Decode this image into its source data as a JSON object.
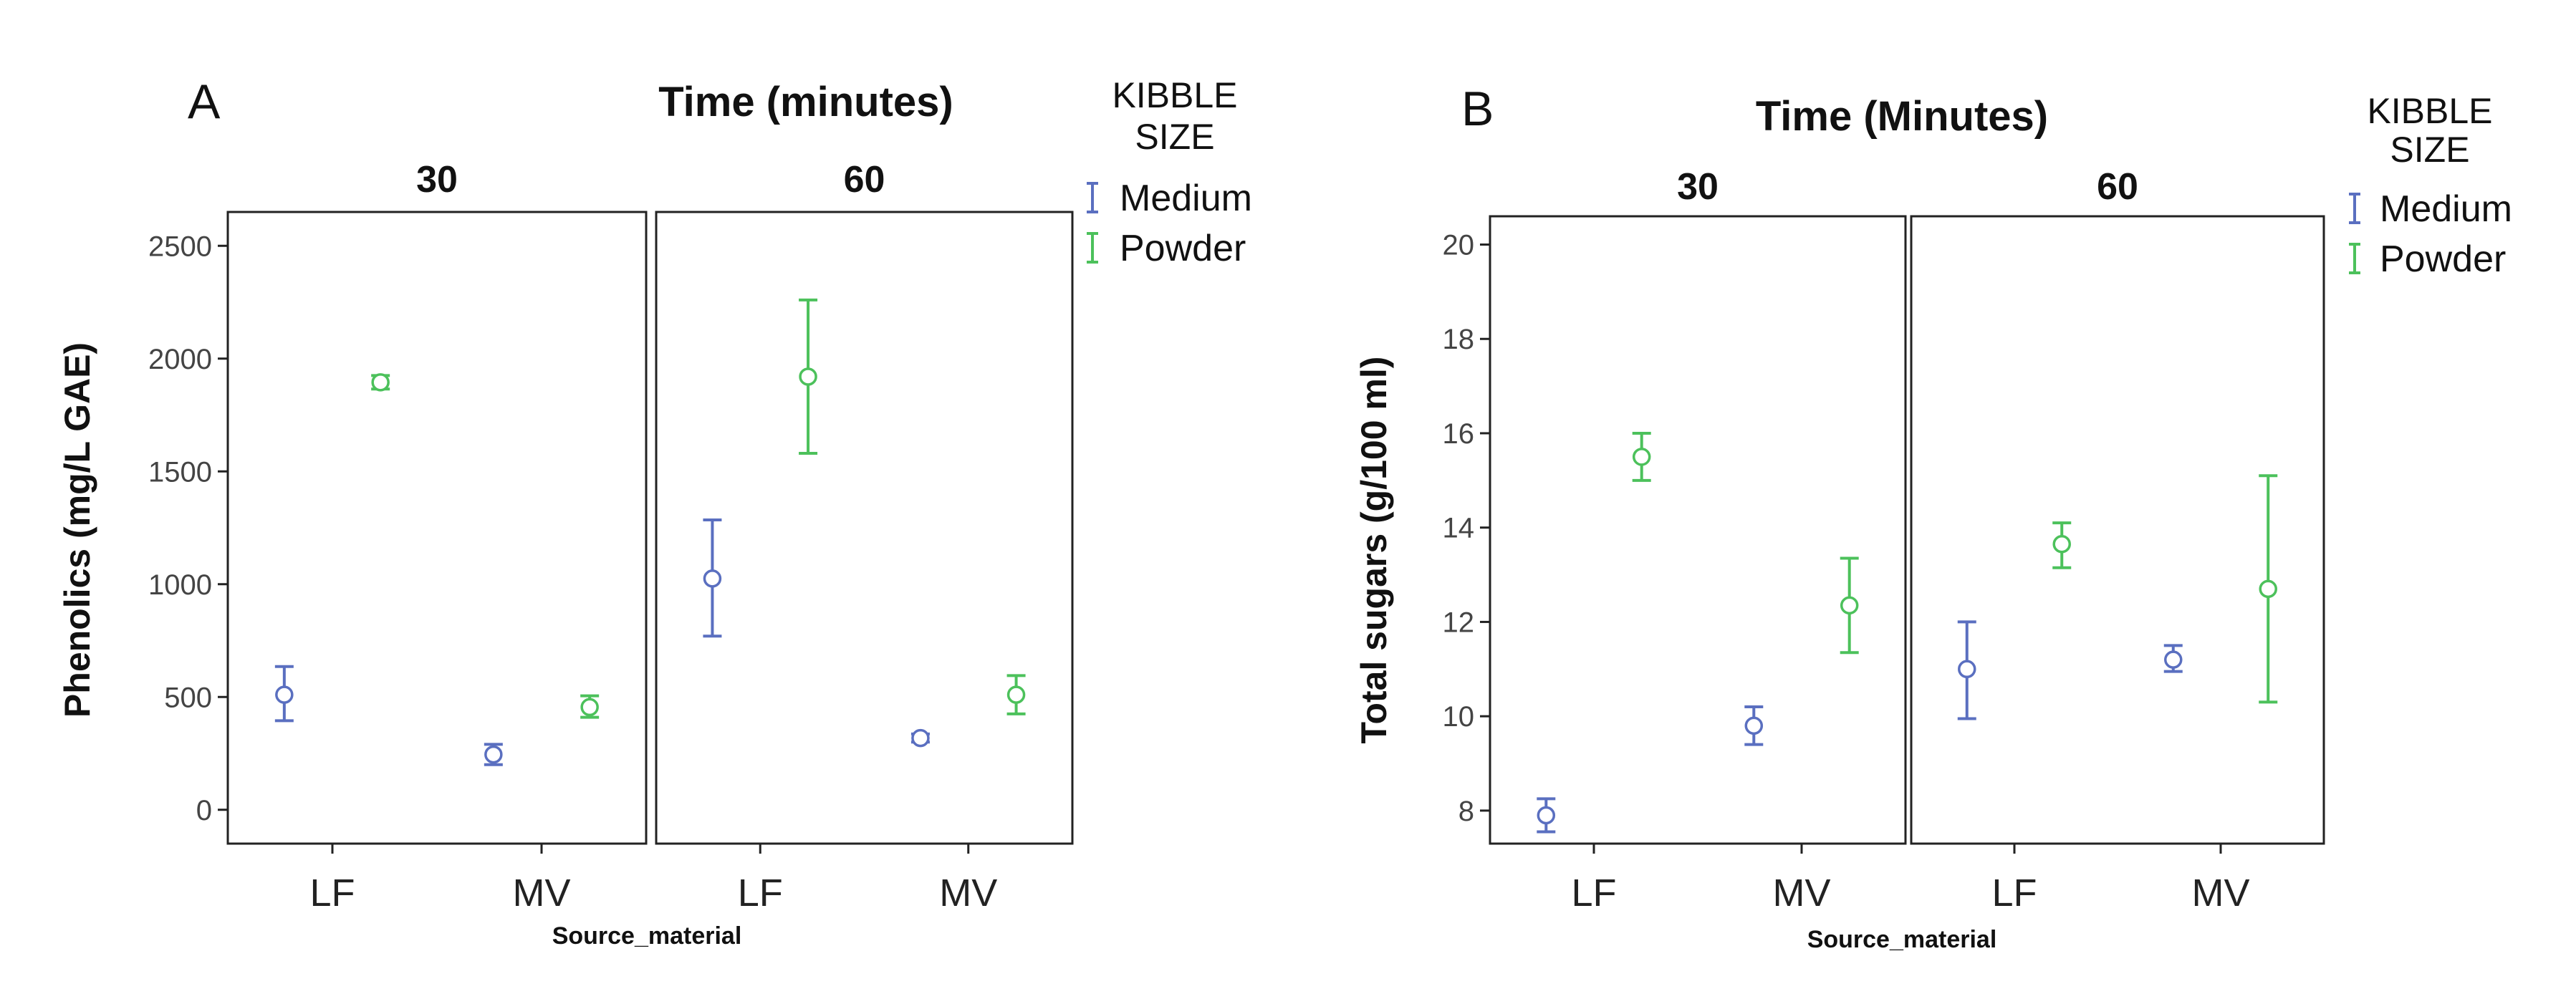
{
  "colors": {
    "Medium": "#5a6fc0",
    "Powder": "#4cc15b"
  },
  "chart_data": [
    {
      "type": "errorbar",
      "panel_label": "A",
      "title": "Time (minutes)",
      "xlabel": "Source_material",
      "ylabel": "Phenolics (mg/L GAE)",
      "ylim": [
        -150,
        2650
      ],
      "yticks": [
        0,
        500,
        1000,
        1500,
        2000,
        2500
      ],
      "categories": [
        "LF",
        "MV"
      ],
      "facets": [
        "30",
        "60"
      ],
      "legend": {
        "title_line1": "KIBBLE",
        "title_line2": "SIZE",
        "entries": [
          "Medium",
          "Powder"
        ]
      },
      "points": [
        {
          "facet": "30",
          "category": "LF",
          "series": "Medium",
          "mean": 510,
          "low": 395,
          "high": 635
        },
        {
          "facet": "30",
          "category": "LF",
          "series": "Powder",
          "mean": 1895,
          "low": 1865,
          "high": 1925
        },
        {
          "facet": "30",
          "category": "MV",
          "series": "Medium",
          "mean": 245,
          "low": 200,
          "high": 290
        },
        {
          "facet": "30",
          "category": "MV",
          "series": "Powder",
          "mean": 455,
          "low": 410,
          "high": 505
        },
        {
          "facet": "60",
          "category": "LF",
          "series": "Medium",
          "mean": 1025,
          "low": 770,
          "high": 1285
        },
        {
          "facet": "60",
          "category": "LF",
          "series": "Powder",
          "mean": 1920,
          "low": 1580,
          "high": 2260
        },
        {
          "facet": "60",
          "category": "MV",
          "series": "Medium",
          "mean": 318,
          "low": 300,
          "high": 336
        },
        {
          "facet": "60",
          "category": "MV",
          "series": "Powder",
          "mean": 510,
          "low": 425,
          "high": 595
        }
      ]
    },
    {
      "type": "errorbar",
      "panel_label": "B",
      "title": "Time (Minutes)",
      "xlabel": "Source_material",
      "ylabel": "Total sugars (g/100 ml)",
      "ylim": [
        7.3,
        20.6
      ],
      "yticks": [
        8,
        10,
        12,
        14,
        16,
        18,
        20
      ],
      "categories": [
        "LF",
        "MV"
      ],
      "facets": [
        "30",
        "60"
      ],
      "legend": {
        "title_line1": "KIBBLE",
        "title_line2": "SIZE",
        "entries": [
          "Medium",
          "Powder"
        ]
      },
      "points": [
        {
          "facet": "30",
          "category": "LF",
          "series": "Medium",
          "mean": 7.9,
          "low": 7.55,
          "high": 8.25
        },
        {
          "facet": "30",
          "category": "LF",
          "series": "Powder",
          "mean": 15.5,
          "low": 15.0,
          "high": 16.0
        },
        {
          "facet": "30",
          "category": "MV",
          "series": "Medium",
          "mean": 9.8,
          "low": 9.4,
          "high": 10.2
        },
        {
          "facet": "30",
          "category": "MV",
          "series": "Powder",
          "mean": 12.35,
          "low": 11.35,
          "high": 13.35
        },
        {
          "facet": "60",
          "category": "LF",
          "series": "Medium",
          "mean": 11.0,
          "low": 9.95,
          "high": 12.0
        },
        {
          "facet": "60",
          "category": "LF",
          "series": "Powder",
          "mean": 13.65,
          "low": 13.15,
          "high": 14.1
        },
        {
          "facet": "60",
          "category": "MV",
          "series": "Medium",
          "mean": 11.2,
          "low": 10.95,
          "high": 11.5
        },
        {
          "facet": "60",
          "category": "MV",
          "series": "Powder",
          "mean": 12.7,
          "low": 10.3,
          "high": 15.1
        }
      ]
    }
  ]
}
